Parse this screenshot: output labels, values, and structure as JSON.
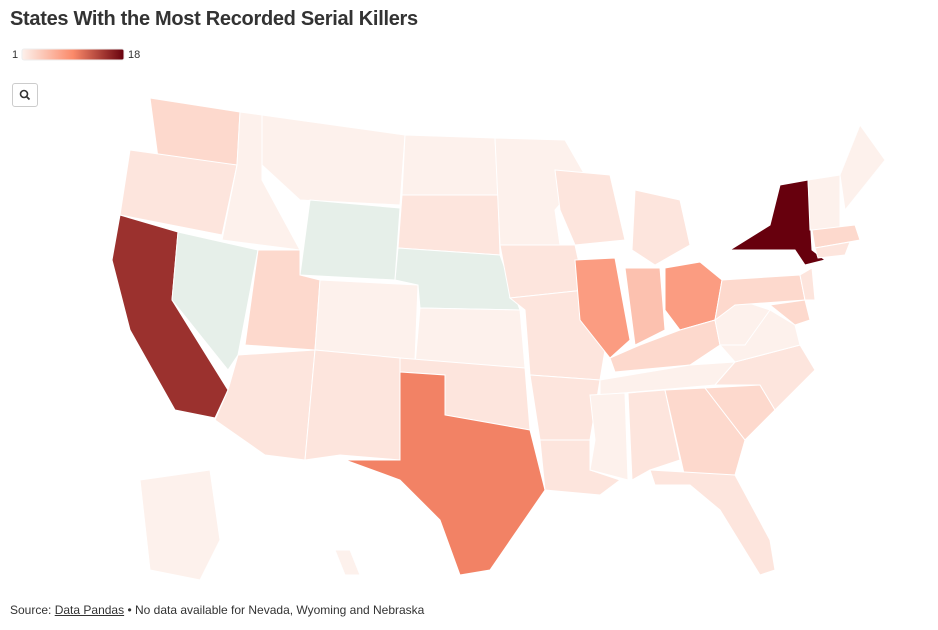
{
  "chart_data": {
    "type": "choropleth",
    "title": "States With the Most Recorded Serial Killers",
    "legend_min": 1,
    "legend_max": 18,
    "colors": [
      "#fdf1ec",
      "#fb8a6a",
      "#67000d"
    ],
    "no_data_color": "#e6efe9",
    "values": [
      3,
      2,
      15,
      null,
      1,
      1,
      null,
      3,
      2,
      1,
      2,
      1,
      2,
      null,
      1,
      2,
      10,
      1,
      2,
      2,
      2,
      2,
      2,
      8,
      2,
      5,
      8,
      3,
      1,
      1,
      2,
      3,
      2,
      3,
      2,
      1,
      1,
      3,
      18,
      2,
      3,
      1,
      1,
      3,
      2,
      1,
      1
    ],
    "source_label": "Source:",
    "source_link": "Data Pandas",
    "note": "• No data available for Nevada, Wyoming and Nebraska"
  }
}
